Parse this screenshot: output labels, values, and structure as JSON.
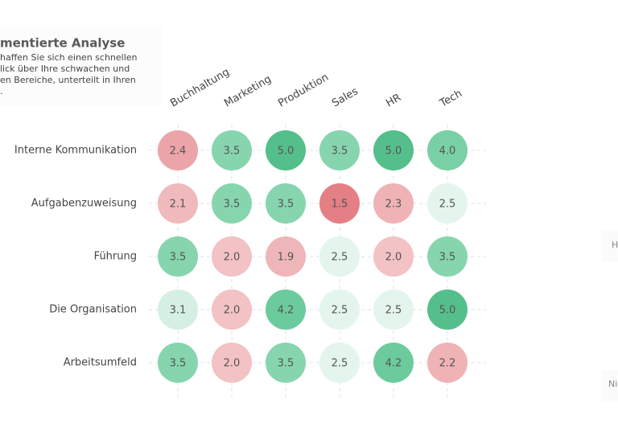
{
  "chart_data": {
    "type": "heatmap",
    "title": "mentierte Analyse",
    "subtitle_lines": [
      "haffen Sie sich einen schnellen",
      "lick über Ihre schwachen und",
      "en Bereiche, unterteilt in Ihren",
      "."
    ],
    "side_labels": [
      "H",
      "Ni"
    ],
    "categories": [
      "Buchhaltung",
      "Marketing",
      "Produktion",
      "Sales",
      "HR",
      "Tech"
    ],
    "series": [
      {
        "name": "Interne Kommunikation",
        "values": [
          2.4,
          3.5,
          5.0,
          3.5,
          5.0,
          4.0
        ],
        "value_labels": [
          "2.4",
          "3.5",
          "5.0",
          "3.5",
          "5.0",
          "4.0"
        ],
        "colors": [
          "#eba5a9",
          "#86d5af",
          "#55bf8b",
          "#86d5af",
          "#55bf8b",
          "#79d0a6"
        ]
      },
      {
        "name": "Aufgabenzuweisung",
        "values": [
          2.1,
          3.5,
          3.5,
          1.5,
          2.3,
          2.5
        ],
        "value_labels": [
          "2.1",
          "3.5",
          "3.5",
          "1.5",
          "2.3",
          "2.5"
        ],
        "colors": [
          "#f0b9bc",
          "#86d5af",
          "#86d5af",
          "#e47f85",
          "#efb3b6",
          "#e4f5ed"
        ]
      },
      {
        "name": "Führung",
        "values": [
          3.5,
          2.0,
          1.9,
          2.5,
          2.0,
          3.5
        ],
        "value_labels": [
          "3.5",
          "2.0",
          "1.9",
          "2.5",
          "2.0",
          "3.5"
        ],
        "colors": [
          "#86d5af",
          "#f2c2c4",
          "#efb6b9",
          "#e4f5ed",
          "#f2c2c4",
          "#86d5af"
        ]
      },
      {
        "name": "Die Organisation",
        "values": [
          3.1,
          2.0,
          4.2,
          2.5,
          2.5,
          5.0
        ],
        "value_labels": [
          "3.1",
          "2.0",
          "4.2",
          "2.5",
          "2.5",
          "5.0"
        ],
        "colors": [
          "#d5efe3",
          "#f2c2c4",
          "#6ccb9d",
          "#e4f5ed",
          "#e4f5ed",
          "#55bf8b"
        ]
      },
      {
        "name": "Arbeitsumfeld",
        "values": [
          3.5,
          2.0,
          3.5,
          2.5,
          4.2,
          2.2
        ],
        "value_labels": [
          "3.5",
          "2.0",
          "3.5",
          "2.5",
          "4.2",
          "2.2"
        ],
        "colors": [
          "#86d5af",
          "#f2c2c4",
          "#86d5af",
          "#e4f5ed",
          "#6ccb9d",
          "#efb3b6"
        ]
      }
    ]
  }
}
